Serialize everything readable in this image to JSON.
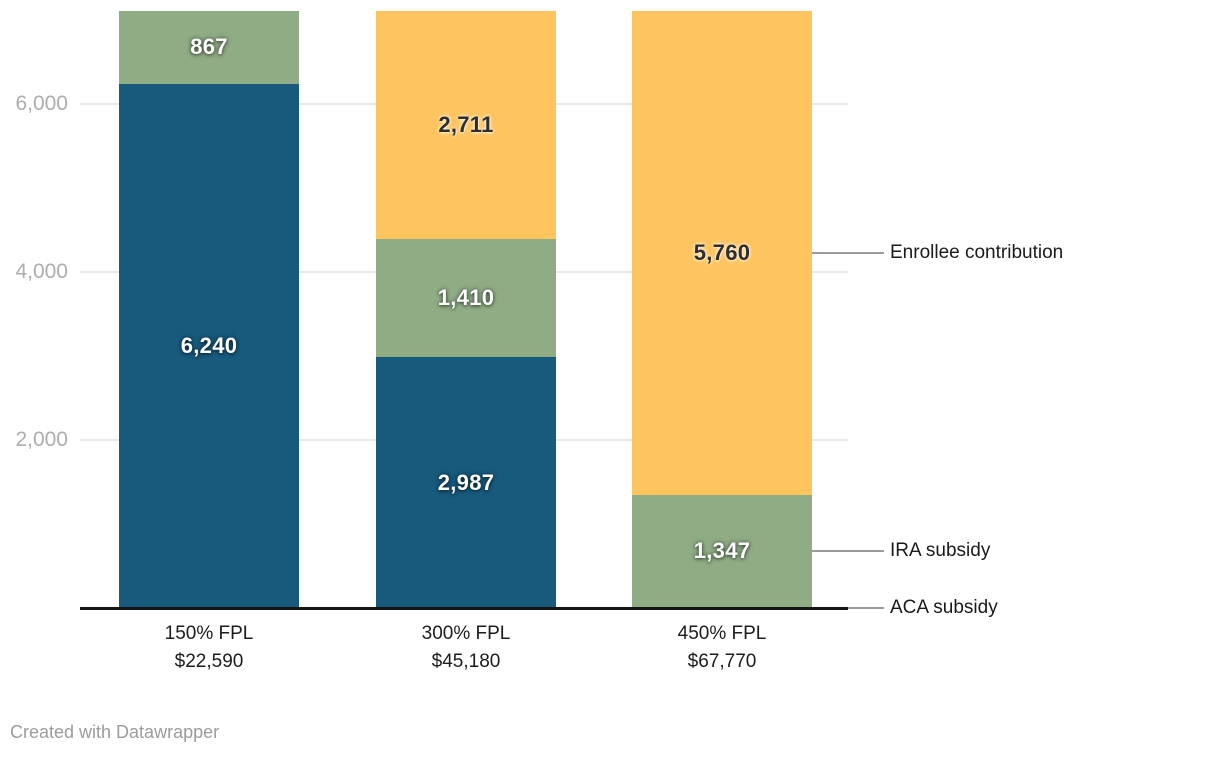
{
  "chart_data": {
    "type": "bar",
    "stacked": true,
    "orientation": "vertical",
    "title": "",
    "categories": [
      "150% FPL",
      "300% FPL",
      "450% FPL"
    ],
    "category_sublabels": [
      "$22,590",
      "$45,180",
      "$67,770"
    ],
    "series": [
      {
        "name": "ACA subsidy",
        "color": "#175a7c",
        "values": [
          6240,
          2987,
          0
        ],
        "value_labels": [
          "6,240",
          "2,987",
          ""
        ],
        "label_color": "#ffffff"
      },
      {
        "name": "IRA subsidy",
        "color": "#8fac85",
        "values": [
          867,
          1410,
          1347
        ],
        "value_labels": [
          "867",
          "1,410",
          "1,347"
        ],
        "label_color": "#ffffff"
      },
      {
        "name": "Enrollee contribution",
        "color": "#fdc45f",
        "values": [
          0,
          2711,
          5760
        ],
        "value_labels": [
          "",
          "2,711",
          "5,760"
        ],
        "label_color": "#2e2e2e"
      }
    ],
    "y_axis": {
      "ticks": [
        {
          "value": 2000,
          "label": "2,000"
        },
        {
          "value": 4000,
          "label": "4,000"
        },
        {
          "value": 6000,
          "label": "6,000"
        }
      ],
      "range": [
        0,
        7240
      ],
      "gridlines": true
    },
    "legend": {
      "position": "right-annotations",
      "entries": [
        {
          "label": "Enrollee contribution",
          "at_value": 4227
        },
        {
          "label": "IRA subsidy",
          "at_value": 674
        },
        {
          "label": "ACA subsidy",
          "at_value": 0
        }
      ]
    }
  },
  "colors": {
    "axis_line": "#141414",
    "gridline": "#e9e9e9",
    "tick_label": "#adadad",
    "category_label": "#1c1c1c",
    "annotation_label": "#1a1a1a",
    "connector_line": "#9b9b9b",
    "footer_text": "#9c9c9c"
  },
  "footer": {
    "attribution": "Created with Datawrapper"
  }
}
